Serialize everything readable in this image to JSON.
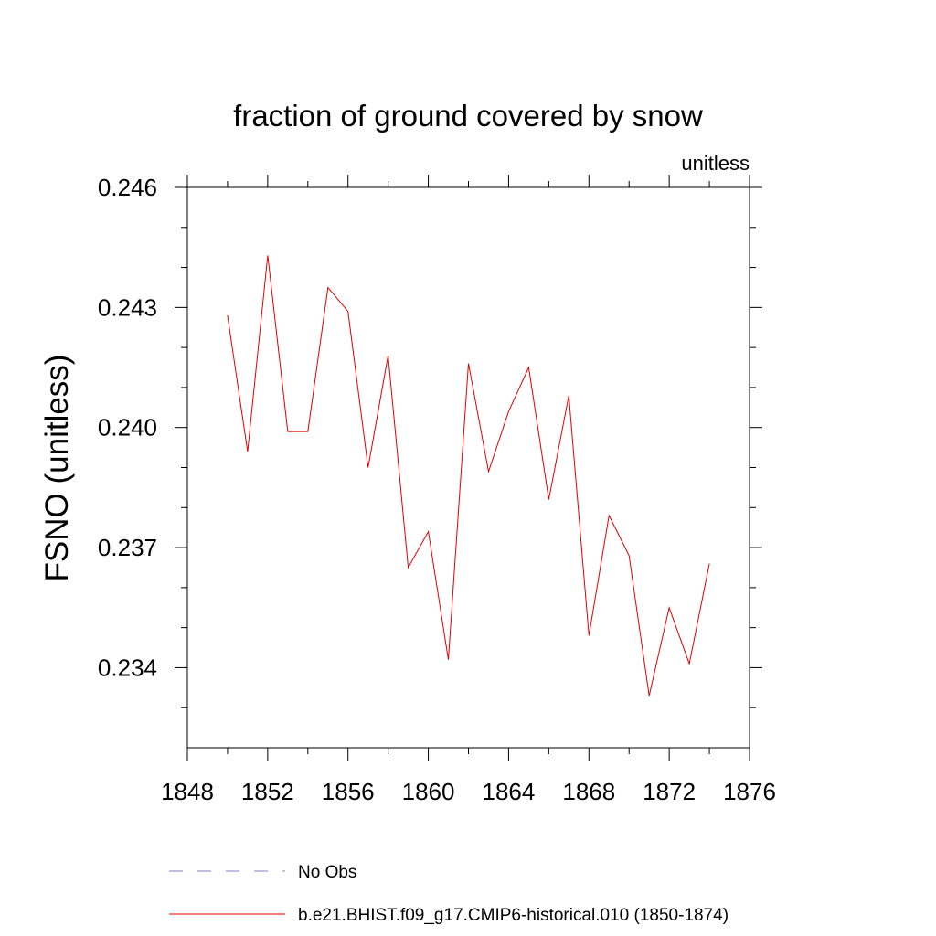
{
  "chart_data": {
    "type": "line",
    "title": "fraction of ground covered by snow",
    "units_label": "unitless",
    "ylabel": "FSNO  (unitless)",
    "xlabel": "",
    "xlim": [
      1848,
      1876
    ],
    "ylim": [
      0.232,
      0.246
    ],
    "x_ticks": [
      "1848",
      "1852",
      "1856",
      "1860",
      "1864",
      "1868",
      "1872",
      "1876"
    ],
    "y_ticks": [
      "0.234",
      "0.237",
      "0.240",
      "0.243",
      "0.246"
    ],
    "x_minor_step": 2,
    "y_minor_step": 0.001,
    "grid": false,
    "legend_position": "bottom",
    "series": [
      {
        "name": "b.e21.BHIST.f09_g17.CMIP6-historical.010 (1850-1874)",
        "color": "#e00000",
        "style": "solid",
        "x": [
          1850,
          1851,
          1852,
          1853,
          1854,
          1855,
          1856,
          1857,
          1858,
          1859,
          1860,
          1861,
          1862,
          1863,
          1864,
          1865,
          1866,
          1867,
          1868,
          1869,
          1870,
          1871,
          1872,
          1873,
          1874
        ],
        "y": [
          0.2428,
          0.2394,
          0.2443,
          0.2399,
          0.2399,
          0.2435,
          0.2429,
          0.239,
          0.2418,
          0.2365,
          0.2374,
          0.2342,
          0.2416,
          0.2389,
          0.2404,
          0.2415,
          0.2382,
          0.2408,
          0.2348,
          0.2378,
          0.2368,
          0.2333,
          0.2355,
          0.2341,
          0.2366
        ]
      }
    ],
    "legend": [
      {
        "label": "No Obs",
        "color": "#8080c0",
        "style": "dashed"
      },
      {
        "label": "b.e21.BHIST.f09_g17.CMIP6-historical.010 (1850-1874)",
        "color": "#e00000",
        "style": "solid"
      }
    ]
  }
}
